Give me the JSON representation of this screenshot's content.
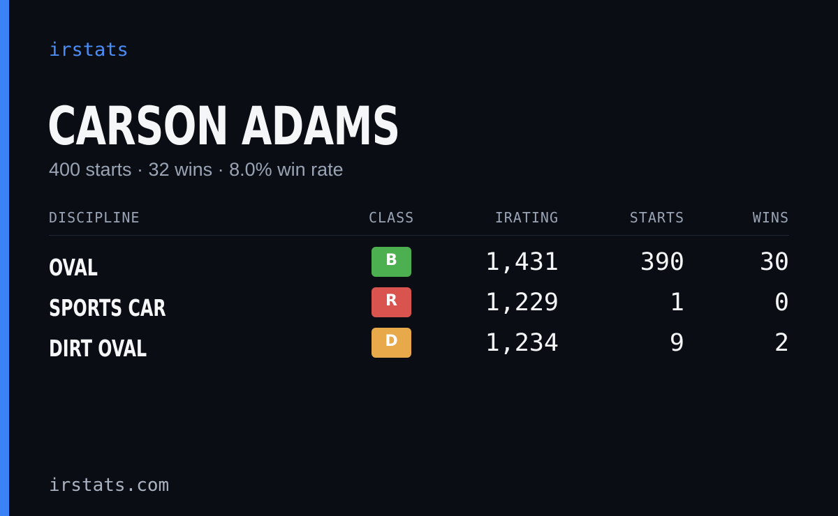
{
  "brand": "irstats",
  "driver": {
    "name": "CARSON ADAMS",
    "summary": "400 starts · 32 wins · 8.0% win rate"
  },
  "table": {
    "headers": {
      "discipline": "DISCIPLINE",
      "class": "CLASS",
      "irating": "IRATING",
      "starts": "STARTS",
      "wins": "WINS"
    },
    "rows": [
      {
        "discipline": "OVAL",
        "class": "B",
        "class_color": "#4caf50",
        "irating": "1,431",
        "starts": "390",
        "wins": "30"
      },
      {
        "discipline": "SPORTS CAR",
        "class": "R",
        "class_color": "#d9534f",
        "irating": "1,229",
        "starts": "1",
        "wins": "0"
      },
      {
        "discipline": "DIRT OVAL",
        "class": "D",
        "class_color": "#e8a94a",
        "irating": "1,234",
        "starts": "9",
        "wins": "2"
      }
    ]
  },
  "footer": "irstats.com",
  "colors": {
    "background": "#0a0d14",
    "accent": "#3b82f6"
  }
}
